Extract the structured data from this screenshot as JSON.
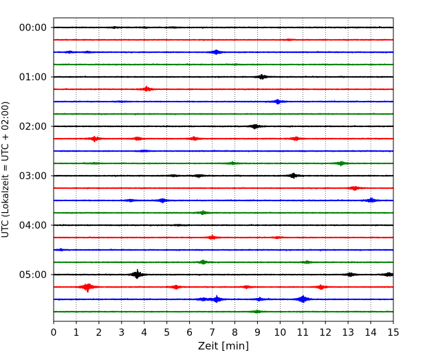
{
  "chart_data": {
    "type": "line",
    "title": "",
    "xlabel": "Zeit  [min]",
    "ylabel": "UTC (Lokalzeit = UTC + 02:00)",
    "xlim": [
      0,
      15
    ],
    "x_ticks": [
      "0",
      "1",
      "2",
      "3",
      "4",
      "5",
      "6",
      "7",
      "8",
      "9",
      "10",
      "11",
      "12",
      "13",
      "14",
      "15"
    ],
    "y_tick_labels": [
      "00:00",
      "01:00",
      "02:00",
      "03:00",
      "04:00",
      "05:00"
    ],
    "row_interval_min": 15,
    "grid": "vertical dotted",
    "line_colors": [
      "#000000",
      "#ff0000",
      "#0000ff",
      "#008000"
    ],
    "traces": [
      {
        "start": "00:00",
        "color": "#000000",
        "events": [
          [
            2.7,
            0.15
          ],
          [
            4.0,
            0.12
          ],
          [
            5.3,
            0.12
          ]
        ]
      },
      {
        "start": "00:15",
        "color": "#ff0000",
        "events": [
          [
            10.4,
            0.12
          ]
        ]
      },
      {
        "start": "00:30",
        "color": "#0000ff",
        "events": [
          [
            0.7,
            0.2
          ],
          [
            1.5,
            0.15
          ],
          [
            7.2,
            0.55
          ]
        ]
      },
      {
        "start": "00:45",
        "color": "#008000",
        "events": [
          [
            8.0,
            0.1
          ]
        ]
      },
      {
        "start": "01:00",
        "color": "#000000",
        "events": [
          [
            9.2,
            0.5
          ]
        ]
      },
      {
        "start": "01:15",
        "color": "#ff0000",
        "events": [
          [
            4.1,
            0.6
          ]
        ]
      },
      {
        "start": "01:30",
        "color": "#0000ff",
        "events": [
          [
            9.9,
            0.45
          ],
          [
            3.0,
            0.12
          ]
        ]
      },
      {
        "start": "01:45",
        "color": "#008000",
        "events": []
      },
      {
        "start": "02:00",
        "color": "#000000",
        "events": [
          [
            8.9,
            0.55
          ]
        ]
      },
      {
        "start": "02:15",
        "color": "#ff0000",
        "events": [
          [
            1.8,
            0.65
          ],
          [
            3.7,
            0.4
          ],
          [
            6.2,
            0.45
          ],
          [
            10.7,
            0.45
          ]
        ]
      },
      {
        "start": "02:30",
        "color": "#0000ff",
        "events": [
          [
            4.0,
            0.2
          ]
        ]
      },
      {
        "start": "02:45",
        "color": "#008000",
        "events": [
          [
            12.7,
            0.5
          ],
          [
            7.9,
            0.3
          ],
          [
            1.8,
            0.15
          ]
        ]
      },
      {
        "start": "03:00",
        "color": "#000000",
        "events": [
          [
            6.4,
            0.35
          ],
          [
            10.6,
            0.6
          ],
          [
            5.3,
            0.2
          ]
        ]
      },
      {
        "start": "03:15",
        "color": "#ff0000",
        "events": [
          [
            13.3,
            0.45
          ]
        ]
      },
      {
        "start": "03:30",
        "color": "#0000ff",
        "events": [
          [
            4.8,
            0.45
          ],
          [
            3.4,
            0.3
          ],
          [
            14.0,
            0.5
          ]
        ]
      },
      {
        "start": "03:45",
        "color": "#008000",
        "events": [
          [
            6.6,
            0.4
          ]
        ]
      },
      {
        "start": "04:00",
        "color": "#000000",
        "events": [
          [
            5.5,
            0.15
          ]
        ]
      },
      {
        "start": "04:15",
        "color": "#ff0000",
        "events": [
          [
            7.0,
            0.45
          ],
          [
            9.9,
            0.2
          ]
        ]
      },
      {
        "start": "04:30",
        "color": "#0000ff",
        "events": [
          [
            0.3,
            0.2
          ]
        ]
      },
      {
        "start": "04:45",
        "color": "#008000",
        "events": [
          [
            6.6,
            0.4
          ],
          [
            11.2,
            0.3
          ]
        ]
      },
      {
        "start": "05:00",
        "color": "#000000",
        "events": [
          [
            3.7,
            1.0
          ],
          [
            13.1,
            0.45
          ],
          [
            14.8,
            0.5
          ]
        ]
      },
      {
        "start": "05:15",
        "color": "#ff0000",
        "events": [
          [
            1.5,
            1.2
          ],
          [
            5.4,
            0.45
          ],
          [
            11.8,
            0.5
          ],
          [
            8.5,
            0.3
          ]
        ]
      },
      {
        "start": "05:30",
        "color": "#0000ff",
        "events": [
          [
            7.2,
            0.75
          ],
          [
            11.0,
            0.9
          ],
          [
            6.6,
            0.4
          ],
          [
            9.1,
            0.35
          ]
        ]
      },
      {
        "start": "05:45",
        "color": "#008000",
        "events": [
          [
            9.0,
            0.35
          ]
        ]
      }
    ]
  }
}
